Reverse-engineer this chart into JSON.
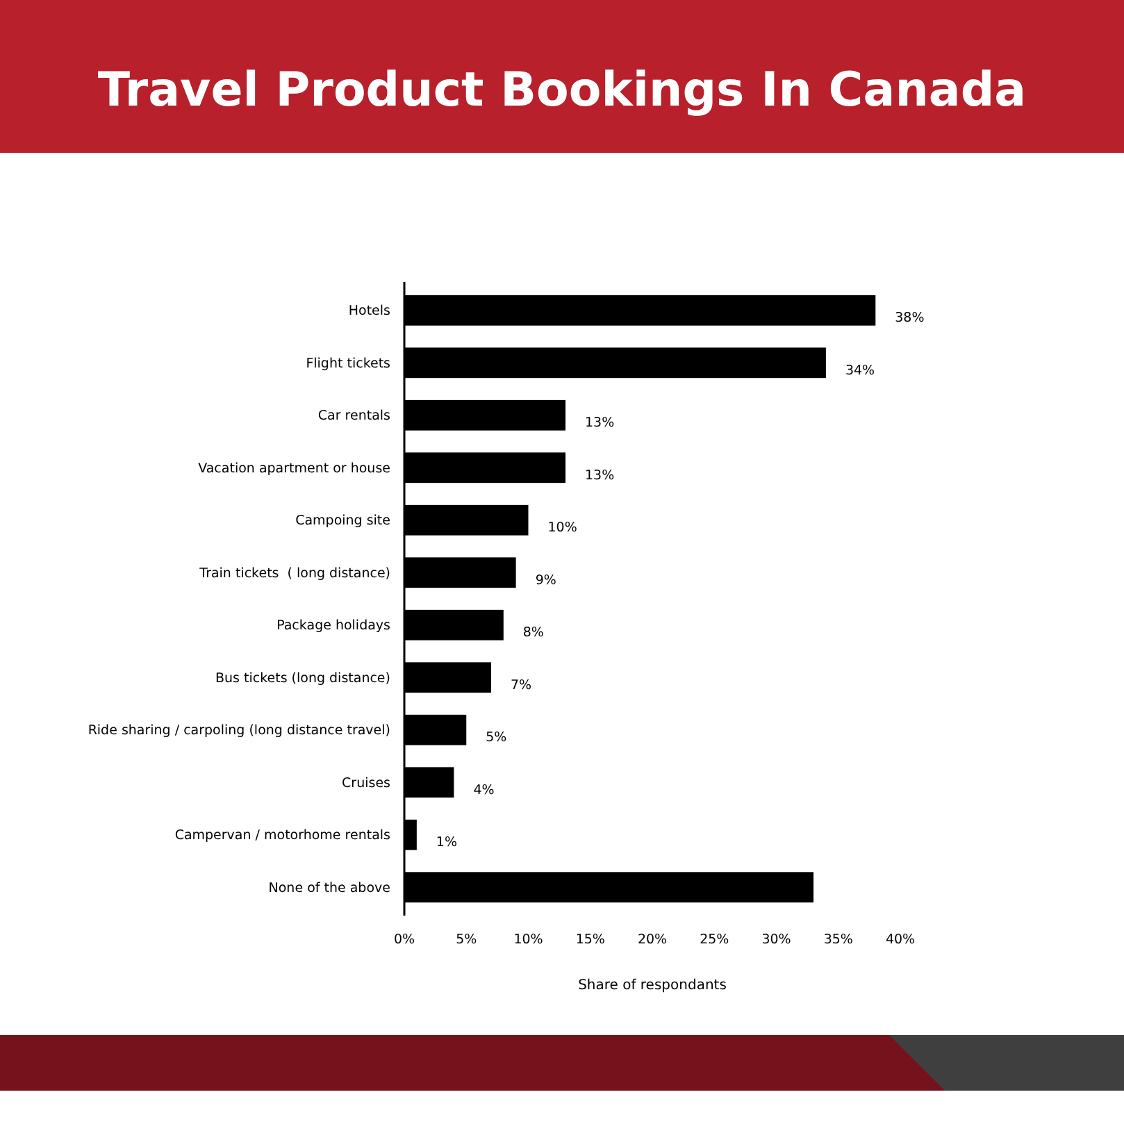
{
  "chart_data": {
    "type": "bar",
    "orientation": "horizontal",
    "title": "Travel Product Bookings In Canada",
    "xlabel": "Share of respondants",
    "categories": [
      "Hotels",
      "Flight tickets",
      "Car rentals",
      "Vacation apartment or house",
      "Campoing site",
      "Train tickets  ( long distance)",
      "Package holidays",
      "Bus tickets (long distance)",
      "Ride sharing / carpoling (long distance travel)",
      "Cruises",
      "Campervan / motorhome rentals",
      "None of the above"
    ],
    "values": [
      38,
      34,
      13,
      13,
      10,
      9,
      8,
      7,
      5,
      4,
      1,
      33
    ],
    "value_labels": [
      "38%",
      "34%",
      "13%",
      "13%",
      "10%",
      "9%",
      "8%",
      "7%",
      "5%",
      "4%",
      "1%",
      null
    ],
    "color": "#000000",
    "xlim": [
      0,
      40
    ],
    "xticks": [
      {
        "value": 0,
        "label": "0%"
      },
      {
        "value": 5,
        "label": "5%"
      },
      {
        "value": 10,
        "label": "10%"
      },
      {
        "value": 15,
        "label": "15%"
      },
      {
        "value": 20,
        "label": "20%"
      },
      {
        "value": 25,
        "label": "25%"
      },
      {
        "value": 30,
        "label": "30%"
      },
      {
        "value": 35,
        "label": "35%"
      },
      {
        "value": 40,
        "label": "40%"
      }
    ],
    "grid": false
  }
}
